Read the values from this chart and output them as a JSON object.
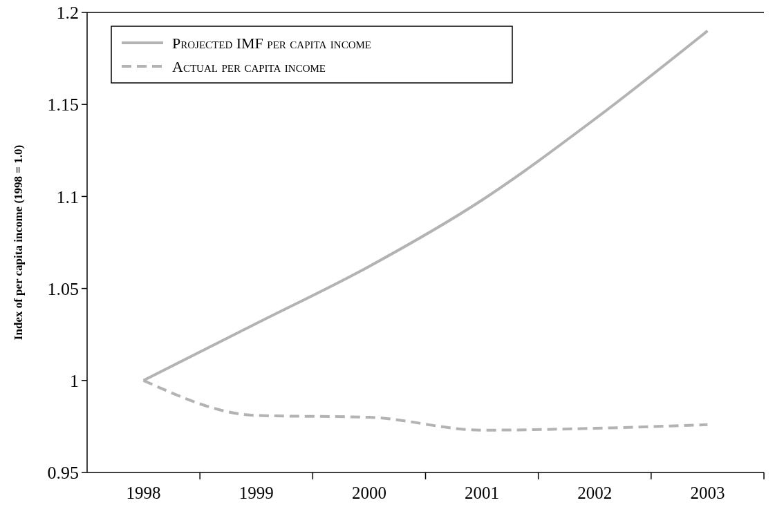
{
  "chart_data": {
    "type": "line",
    "ylabel": "Index of per capita income (1998 = 1.0)",
    "categories": [
      "1998",
      "1999",
      "2000",
      "2001",
      "2002",
      "2003"
    ],
    "series": [
      {
        "name": "Projected IMF per capita income",
        "color": "#b3b3b3",
        "line_style": "solid",
        "values": [
          1.0,
          1.031,
          1.062,
          1.098,
          1.142,
          1.19
        ]
      },
      {
        "name": "Actual per capita income",
        "color": "#b3b3b3",
        "line_style": "dashed",
        "values": [
          1.0,
          0.981,
          0.98,
          0.973,
          0.974,
          0.976
        ]
      }
    ],
    "ylim": [
      0.95,
      1.2
    ],
    "yticks": [
      0.95,
      1,
      1.05,
      1.1,
      1.15,
      1.2
    ],
    "legend": "top left",
    "grid": false
  }
}
